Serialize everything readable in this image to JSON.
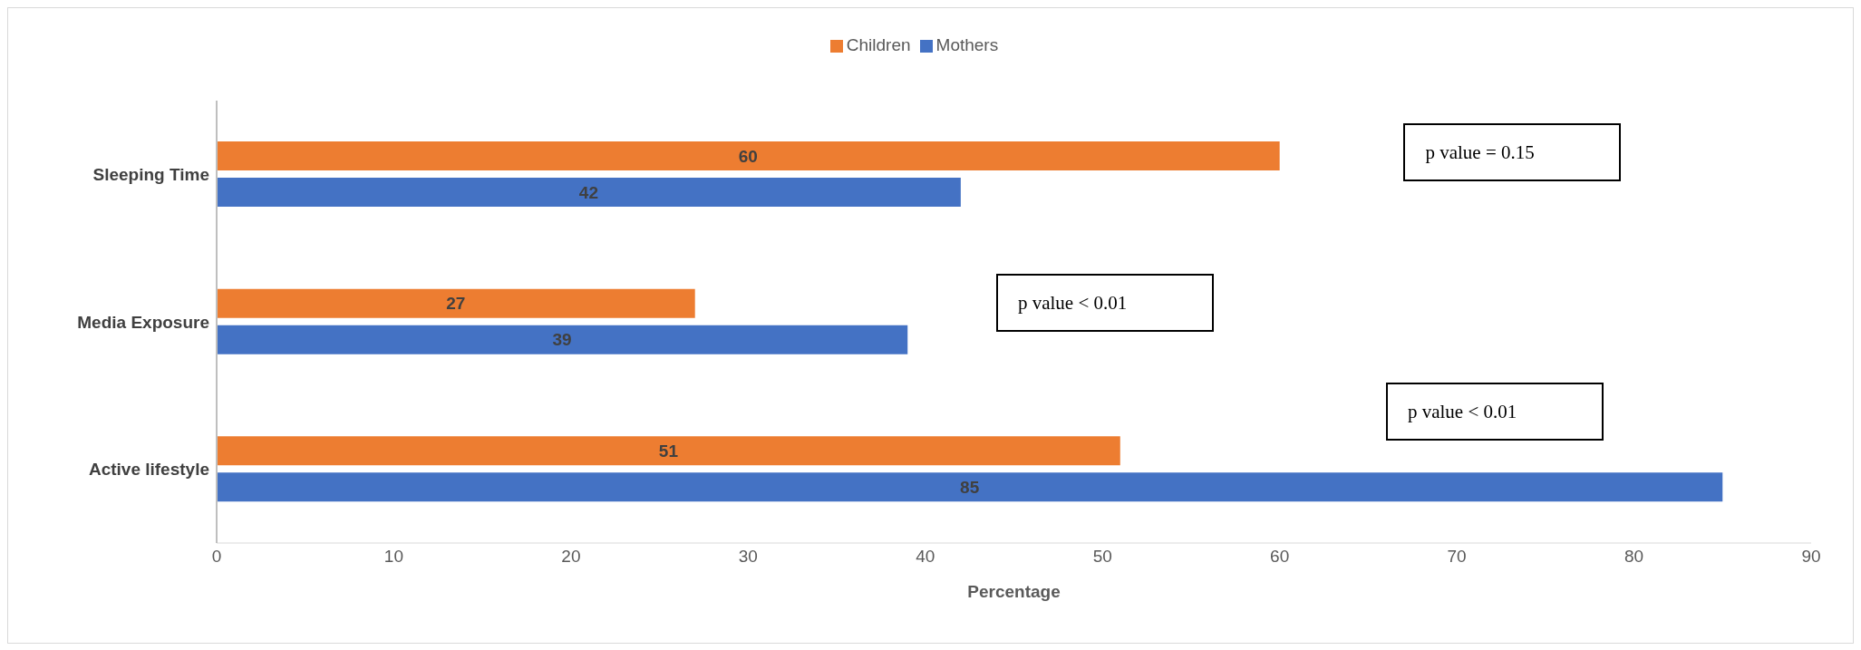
{
  "chart_data": {
    "type": "bar",
    "orientation": "horizontal",
    "xlabel": "Percentage",
    "categories": [
      "Sleeping Time",
      "Media Exposure",
      "Active lifestyle"
    ],
    "series": [
      {
        "name": "Children",
        "color": "#ed7d31",
        "values": [
          60,
          27,
          51
        ]
      },
      {
        "name": "Mothers",
        "color": "#4472c4",
        "values": [
          42,
          39,
          85
        ]
      }
    ],
    "xlim": [
      0,
      90
    ],
    "xticks": [
      0,
      10,
      20,
      30,
      40,
      50,
      60,
      70,
      80,
      90
    ],
    "data_labels": true,
    "grid": false,
    "legend": "top",
    "annotations": [
      "p value = 0.15",
      "p value < 0.01",
      "p value < 0.01"
    ]
  }
}
